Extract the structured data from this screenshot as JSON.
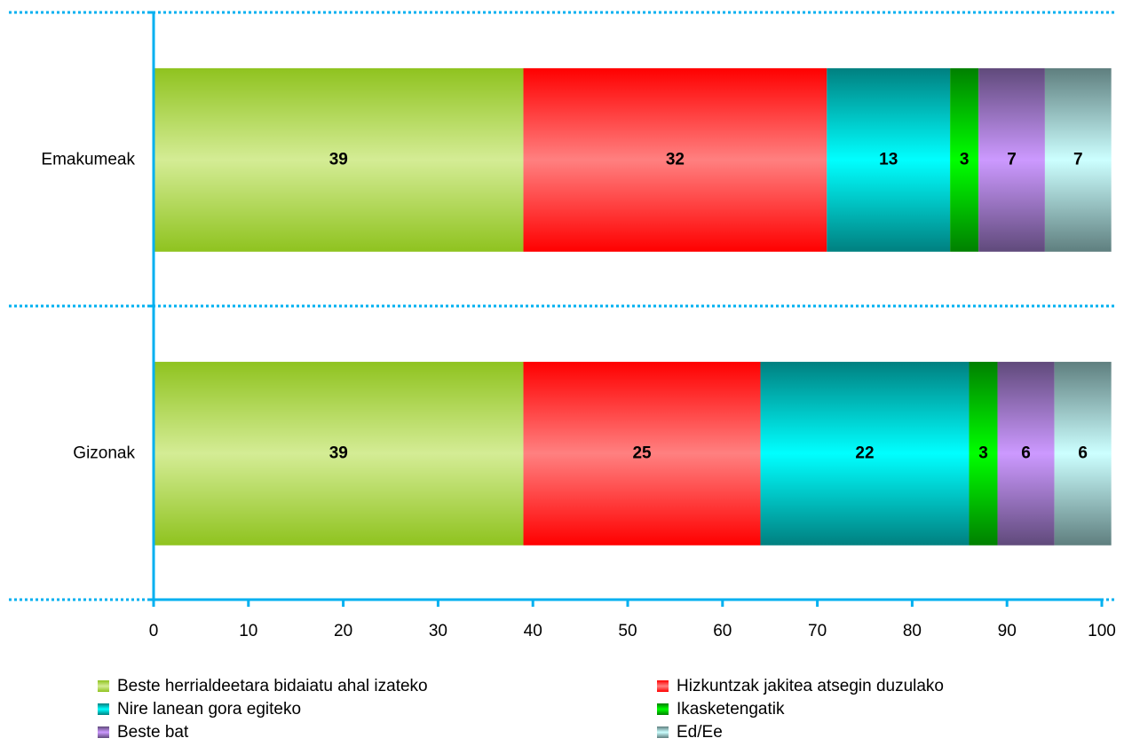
{
  "chart_data": {
    "type": "stacked_bar_horizontal",
    "categories": [
      "Emakumeak",
      "Gizonak"
    ],
    "series": [
      {
        "name": "Beste herrialdeetara bidaiatu ahal izateko",
        "color": "#d4ec95",
        "edge_color": "#8fc31f",
        "values": [
          39,
          39
        ]
      },
      {
        "name": "Hizkuntzak jakitea atsegin duzulako",
        "color": "#ff8080",
        "edge_color": "#ff0000",
        "values": [
          32,
          25
        ]
      },
      {
        "name": "Nire lanean gora egiteko",
        "color": "#00ffff",
        "edge_color": "#008080",
        "values": [
          13,
          22
        ]
      },
      {
        "name": "Ikasketengatik",
        "color": "#00ff00",
        "edge_color": "#008000",
        "values": [
          3,
          3
        ]
      },
      {
        "name": "Beste bat",
        "color": "#cc99ff",
        "edge_color": "#604a7b",
        "values": [
          7,
          6
        ]
      },
      {
        "name": "Ed/Ee",
        "color": "#ccffff",
        "edge_color": "#5f7f7f",
        "values": [
          7,
          6
        ]
      }
    ],
    "xlim": [
      0,
      100
    ],
    "xticks": [
      0,
      10,
      20,
      30,
      40,
      50,
      60,
      70,
      80,
      90,
      100
    ],
    "axis_color": "#00b0f0",
    "legend": "bottom"
  }
}
